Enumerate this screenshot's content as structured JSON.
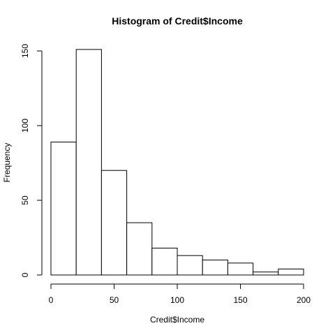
{
  "chart_data": {
    "type": "bar",
    "title": "Histogram of Credit$Income",
    "xlabel": "Credit$Income",
    "ylabel": "Frequency",
    "bins": [
      {
        "start": 0,
        "end": 20,
        "count": 89
      },
      {
        "start": 20,
        "end": 40,
        "count": 151
      },
      {
        "start": 40,
        "end": 60,
        "count": 70
      },
      {
        "start": 60,
        "end": 80,
        "count": 35
      },
      {
        "start": 80,
        "end": 100,
        "count": 18
      },
      {
        "start": 100,
        "end": 120,
        "count": 13
      },
      {
        "start": 120,
        "end": 140,
        "count": 10
      },
      {
        "start": 140,
        "end": 160,
        "count": 8
      },
      {
        "start": 160,
        "end": 180,
        "count": 2
      },
      {
        "start": 180,
        "end": 200,
        "count": 4
      }
    ],
    "xlim": [
      0,
      200
    ],
    "ylim": [
      0,
      151
    ],
    "x_ticks": [
      0,
      50,
      100,
      150,
      200
    ],
    "y_ticks": [
      0,
      50,
      100,
      150
    ],
    "grid": false
  }
}
